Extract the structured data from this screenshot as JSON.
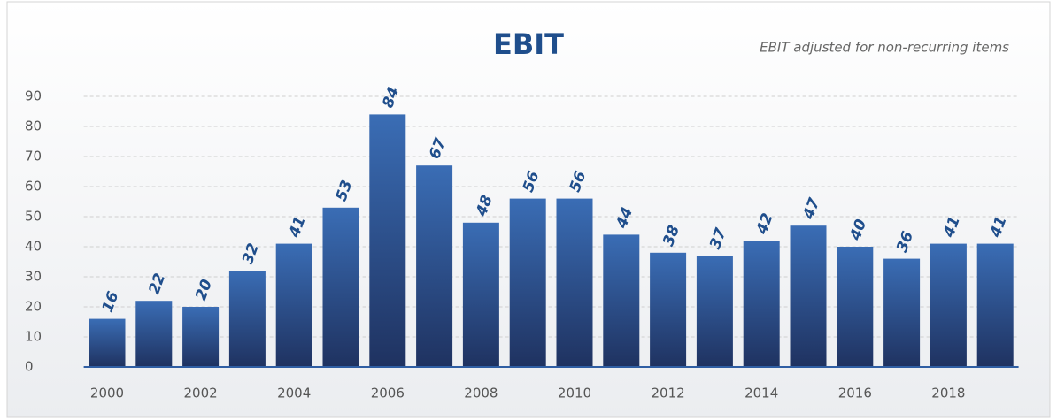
{
  "chart_data": {
    "type": "bar",
    "title": "EBIT",
    "subtitle": "EBIT adjusted for non-recurring items",
    "categories": [
      "2000",
      null,
      "2002",
      null,
      "2004",
      null,
      "2006",
      null,
      "2008",
      null,
      "2010",
      null,
      "2012",
      null,
      "2014",
      null,
      "2016",
      null,
      "2018",
      null
    ],
    "values": [
      16,
      22,
      20,
      32,
      41,
      53,
      84,
      67,
      48,
      56,
      56,
      44,
      38,
      37,
      42,
      47,
      40,
      36,
      41,
      41
    ],
    "color": "#2f5ea3",
    "ylim": [
      0,
      90
    ],
    "yticks": [
      0,
      10,
      20,
      30,
      40,
      50,
      60,
      70,
      80,
      90
    ],
    "grid": true
  }
}
